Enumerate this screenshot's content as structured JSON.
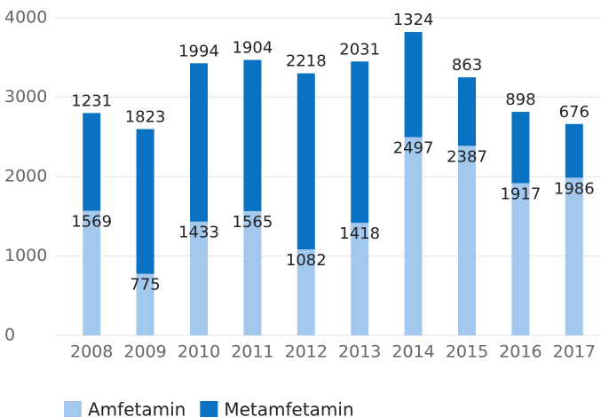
{
  "chart_data": {
    "type": "bar",
    "stacked": true,
    "categories": [
      "2008",
      "2009",
      "2010",
      "2011",
      "2012",
      "2013",
      "2014",
      "2015",
      "2016",
      "2017"
    ],
    "series": [
      {
        "name": "Amfetamin",
        "color": "#a3c8ee",
        "values": [
          1569,
          775,
          1433,
          1565,
          1082,
          1418,
          2497,
          2387,
          1917,
          1986
        ]
      },
      {
        "name": "Metamfetamin",
        "color": "#0a72c2",
        "values": [
          1231,
          1823,
          1994,
          1904,
          2218,
          2031,
          1324,
          863,
          898,
          676
        ]
      }
    ],
    "ylim": [
      0,
      4000
    ],
    "yticks": [
      0,
      1000,
      2000,
      3000,
      4000
    ],
    "grid": true,
    "legend": "bottom"
  }
}
